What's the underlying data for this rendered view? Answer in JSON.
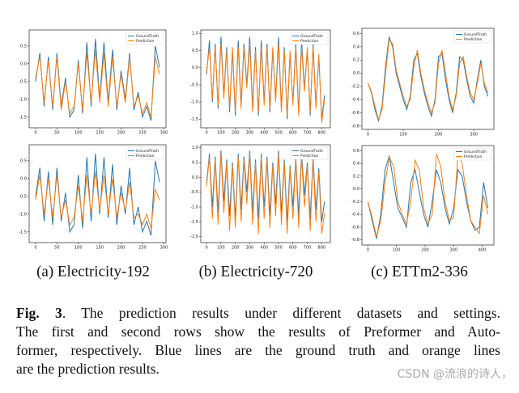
{
  "chart_data": [
    {
      "type": "line",
      "x": [
        0,
        10,
        20,
        30,
        40,
        50,
        60,
        70,
        80,
        90,
        100,
        110,
        120,
        130,
        140,
        150,
        160,
        170,
        180,
        190,
        200,
        210,
        220,
        230,
        240,
        250,
        260,
        270,
        280,
        290
      ],
      "series": [
        {
          "name": "GroundTruth",
          "color": "#1f77b4",
          "values": [
            -0.5,
            0.3,
            -1.2,
            0.2,
            -1.3,
            0.3,
            -1.2,
            -0.4,
            -1.5,
            -1.3,
            0.1,
            -1.4,
            0.6,
            -1.2,
            0.7,
            -1.0,
            0.6,
            -1.1,
            0.4,
            -1.3,
            -0.2,
            -1.0,
            0.3,
            -1.3,
            -0.8,
            -1.5,
            -1.2,
            -1.6,
            0.5,
            -0.1
          ]
        },
        {
          "name": "Prediction",
          "color": "#ff7f0e",
          "values": [
            -0.4,
            0.2,
            -1.1,
            0.1,
            -1.2,
            0.2,
            -1.3,
            -0.5,
            -1.4,
            -1.2,
            0.0,
            -1.3,
            0.3,
            -1.1,
            0.4,
            -1.1,
            0.3,
            -1.2,
            0.2,
            -1.2,
            -0.3,
            -1.1,
            0.2,
            -1.2,
            -0.9,
            -1.4,
            -1.1,
            -1.5,
            0.2,
            -0.3
          ]
        }
      ],
      "xlim": [
        -15,
        305
      ],
      "xticks": [
        0,
        50,
        100,
        150,
        200,
        250,
        300
      ],
      "ylim": [
        -1.8,
        0.95
      ],
      "yticks": [
        0.5,
        {
          "value": 0,
          "label": "0.0"
        },
        -0.5,
        {
          "value": -1,
          "label": "-1.0"
        },
        -1.5
      ],
      "legend": "upper right"
    },
    {
      "type": "line",
      "x": [
        0,
        20,
        40,
        60,
        80,
        100,
        120,
        140,
        160,
        180,
        200,
        220,
        240,
        260,
        280,
        300,
        320,
        340,
        360,
        380,
        400,
        420,
        440,
        460,
        480,
        500,
        520,
        540,
        560,
        580,
        600,
        620,
        640,
        660,
        680,
        700,
        720,
        740,
        760,
        780,
        800,
        820
      ],
      "series": [
        {
          "name": "GroundTruth",
          "color": "#1f77b4",
          "values": [
            -0.2,
            0.8,
            -1.0,
            0.7,
            -1.2,
            0.9,
            -0.8,
            0.6,
            -1.3,
            0.5,
            -1.4,
            0.8,
            -1.1,
            0.7,
            -0.5,
            0.9,
            -1.2,
            0.6,
            -1.4,
            0.8,
            -1.0,
            0.7,
            -1.3,
            0.5,
            -0.9,
            0.9,
            -1.2,
            0.6,
            -1.5,
            0.4,
            -1.0,
            0.7,
            -1.3,
            0.8,
            -0.6,
            0.5,
            -1.4,
            0.7,
            -1.1,
            0.3,
            -1.5,
            -0.8
          ]
        },
        {
          "name": "Prediction",
          "color": "#ff7f0e",
          "values": [
            -0.1,
            0.6,
            -0.9,
            0.6,
            -1.1,
            0.7,
            -0.9,
            0.5,
            -1.2,
            0.6,
            -1.3,
            0.6,
            -1.2,
            0.6,
            -0.6,
            0.7,
            -1.3,
            0.5,
            -1.3,
            0.6,
            -1.1,
            0.6,
            -1.2,
            0.6,
            -1.0,
            0.7,
            -1.3,
            0.5,
            -1.4,
            0.5,
            -1.1,
            0.6,
            -1.4,
            0.6,
            -0.7,
            0.6,
            -1.3,
            0.6,
            -1.2,
            0.4,
            -1.6,
            -0.9
          ]
        }
      ],
      "xlim": [
        -40,
        860
      ],
      "xticks": [
        0,
        100,
        200,
        300,
        400,
        500,
        600,
        700,
        800
      ],
      "ylim": [
        -1.75,
        1.1
      ],
      "yticks": [
        {
          "value": 1,
          "label": "1.0"
        },
        0.5,
        {
          "value": 0,
          "label": "0.0"
        },
        -0.5,
        {
          "value": -1,
          "label": "-1.0"
        },
        -1.5
      ],
      "legend": "upper right"
    },
    {
      "type": "line",
      "x": [
        0,
        10,
        20,
        30,
        40,
        50,
        60,
        70,
        80,
        90,
        100,
        110,
        120,
        130,
        140,
        150,
        160,
        170,
        180,
        190,
        200,
        210,
        220,
        230,
        240,
        250,
        260,
        270,
        280,
        290,
        300,
        310,
        320,
        330,
        340
      ],
      "series": [
        {
          "name": "GroundTruth",
          "color": "#1f77b4",
          "values": [
            -0.15,
            -0.3,
            -0.55,
            -0.72,
            -0.5,
            0.1,
            0.55,
            0.4,
            0.0,
            -0.2,
            -0.4,
            -0.55,
            -0.35,
            0.2,
            0.3,
            -0.05,
            -0.3,
            -0.5,
            -0.65,
            -0.4,
            0.25,
            0.3,
            -0.1,
            -0.4,
            -0.6,
            -0.3,
            0.25,
            0.2,
            -0.1,
            -0.35,
            -0.45,
            -0.1,
            0.2,
            -0.2,
            -0.35
          ]
        },
        {
          "name": "Prediction",
          "color": "#ff7f0e",
          "values": [
            -0.15,
            -0.28,
            -0.5,
            -0.7,
            -0.55,
            0.0,
            0.5,
            0.45,
            0.05,
            -0.15,
            -0.35,
            -0.5,
            -0.4,
            0.1,
            0.35,
            0.0,
            -0.25,
            -0.45,
            -0.6,
            -0.45,
            0.15,
            0.35,
            0.0,
            -0.35,
            -0.55,
            -0.35,
            0.15,
            0.25,
            -0.05,
            -0.3,
            -0.4,
            -0.15,
            0.15,
            -0.15,
            -0.3
          ]
        }
      ],
      "xlim": [
        -17,
        357
      ],
      "xticks": [
        0,
        100,
        200,
        300
      ],
      "ylim": [
        -0.85,
        0.68
      ],
      "yticks": [
        0.6,
        0.4,
        0.2,
        {
          "value": 0,
          "label": "0.0"
        },
        -0.2,
        -0.4,
        -0.6,
        -0.8
      ],
      "legend": "upper right"
    },
    {
      "type": "line",
      "x": [
        0,
        10,
        20,
        30,
        40,
        50,
        60,
        70,
        80,
        90,
        100,
        110,
        120,
        130,
        140,
        150,
        160,
        170,
        180,
        190,
        200,
        210,
        220,
        230,
        240,
        250,
        260,
        270,
        280,
        290
      ],
      "series": [
        {
          "name": "GroundTruth",
          "color": "#1f77b4",
          "values": [
            -0.5,
            0.3,
            -1.2,
            0.2,
            -1.3,
            0.3,
            -1.2,
            -0.4,
            -1.5,
            -1.3,
            0.1,
            -1.4,
            0.6,
            -1.2,
            0.7,
            -1.0,
            0.6,
            -1.1,
            0.4,
            -1.3,
            -0.2,
            -1.0,
            0.3,
            -1.3,
            -0.8,
            -1.5,
            -1.2,
            -1.6,
            0.5,
            -0.1
          ]
        },
        {
          "name": "Prediction",
          "color": "#ff7f0e",
          "values": [
            -0.6,
            0.1,
            -1.0,
            0.0,
            -1.1,
            0.1,
            -1.1,
            -0.6,
            -1.3,
            -1.1,
            -0.2,
            -1.2,
            0.1,
            -1.0,
            0.2,
            -0.9,
            0.1,
            -1.0,
            0.0,
            -1.1,
            -0.4,
            -0.9,
            -0.1,
            -1.1,
            -1.0,
            -1.3,
            -1.0,
            -1.4,
            -0.3,
            -0.6
          ]
        }
      ],
      "xlim": [
        -15,
        305
      ],
      "xticks": [
        0,
        50,
        100,
        150,
        200,
        250,
        300
      ],
      "ylim": [
        -1.8,
        0.95
      ],
      "yticks": [
        0.5,
        {
          "value": 0,
          "label": "0.0"
        },
        -0.5,
        {
          "value": -1,
          "label": "-1.0"
        },
        -1.5
      ],
      "legend": "upper right"
    },
    {
      "type": "line",
      "x": [
        0,
        20,
        40,
        60,
        80,
        100,
        120,
        140,
        160,
        180,
        200,
        220,
        240,
        260,
        280,
        300,
        320,
        340,
        360,
        380,
        400,
        420,
        440,
        460,
        480,
        500,
        520,
        540,
        560,
        580,
        600,
        620,
        640,
        660,
        680,
        700,
        720,
        740,
        760,
        780,
        800,
        820
      ],
      "series": [
        {
          "name": "GroundTruth",
          "color": "#1f77b4",
          "values": [
            -0.2,
            0.8,
            -1.0,
            0.7,
            -1.2,
            0.9,
            -0.8,
            0.6,
            -1.3,
            0.5,
            -1.4,
            0.8,
            -1.1,
            0.7,
            -0.5,
            0.9,
            -1.2,
            0.6,
            -1.4,
            0.8,
            -1.0,
            0.7,
            -1.3,
            0.5,
            -0.9,
            0.9,
            -1.2,
            0.6,
            -1.5,
            0.4,
            -1.0,
            0.7,
            -1.3,
            0.8,
            -0.6,
            0.5,
            -1.4,
            0.7,
            -1.1,
            0.3,
            -1.5,
            -0.8
          ]
        },
        {
          "name": "Prediction",
          "color": "#ff7f0e",
          "values": [
            -0.3,
            0.7,
            -1.4,
            0.6,
            -1.6,
            0.8,
            -1.2,
            0.5,
            -1.8,
            0.4,
            -1.7,
            0.7,
            -1.5,
            0.6,
            -0.9,
            0.8,
            -1.6,
            0.5,
            -1.9,
            0.7,
            -1.4,
            0.6,
            -1.7,
            0.4,
            -1.3,
            0.8,
            -1.6,
            0.5,
            -1.9,
            0.3,
            -1.4,
            0.6,
            -1.7,
            0.7,
            -1.0,
            0.4,
            -1.8,
            0.6,
            -1.5,
            0.2,
            -1.9,
            -1.2
          ]
        }
      ],
      "xlim": [
        -40,
        860
      ],
      "xticks": [
        0,
        100,
        200,
        300,
        400,
        500,
        600,
        700,
        800
      ],
      "ylim": [
        -2.2,
        1.1
      ],
      "yticks": [
        {
          "value": 1,
          "label": "1.0"
        },
        0.5,
        {
          "value": 0,
          "label": "0.0"
        },
        -0.5,
        {
          "value": -1,
          "label": "-1.0"
        },
        -1.5,
        {
          "value": -2,
          "label": "-2.0"
        }
      ],
      "legend": "upper right"
    },
    {
      "type": "line",
      "x": [
        0,
        15,
        30,
        45,
        60,
        75,
        90,
        105,
        120,
        135,
        150,
        165,
        180,
        195,
        210,
        225,
        240,
        255,
        270,
        285,
        300,
        315,
        330,
        345,
        360,
        375,
        390,
        405,
        420
      ],
      "series": [
        {
          "name": "GroundTruth",
          "color": "#1f77b4",
          "values": [
            -0.2,
            -0.5,
            -0.78,
            -0.4,
            0.3,
            0.52,
            0.1,
            -0.3,
            -0.45,
            -0.6,
            0.1,
            0.3,
            -0.05,
            -0.4,
            -0.6,
            -0.2,
            0.3,
            0.1,
            -0.3,
            -0.55,
            -0.3,
            0.3,
            0.2,
            -0.2,
            -0.5,
            -0.65,
            -0.6,
            0.1,
            -0.3
          ]
        },
        {
          "name": "Prediction",
          "color": "#ff7f0e",
          "values": [
            -0.2,
            -0.45,
            -0.75,
            -0.5,
            0.1,
            0.5,
            0.35,
            -0.2,
            -0.4,
            -0.55,
            -0.2,
            0.45,
            0.3,
            -0.3,
            -0.55,
            -0.4,
            0.55,
            0.35,
            -0.2,
            -0.5,
            -0.45,
            0.55,
            0.4,
            -0.1,
            -0.5,
            -0.6,
            -0.7,
            -0.1,
            -0.4
          ]
        }
      ],
      "xlim": [
        -21,
        441
      ],
      "xticks": [
        0,
        100,
        200,
        300,
        400
      ],
      "ylim": [
        -0.88,
        0.68
      ],
      "yticks": [
        0.6,
        0.4,
        0.2,
        {
          "value": 0,
          "label": "0.0"
        },
        -0.2,
        -0.4,
        -0.6,
        -0.8
      ],
      "legend": "upper right"
    }
  ],
  "subcaptions": [
    "(a) Electricity-192",
    "(b) Electricity-720",
    "(c) ETTm2-336"
  ],
  "caption": {
    "label": "Fig. 3",
    "lines": [
      ". The prediction results under different datasets and settings.",
      "The first and second rows show the results of Preformer and Auto-",
      "former, respectively. Blue lines are the ground truth and orange lines",
      "are the prediction results."
    ]
  },
  "watermark": "CSDN @流浪的诗人，"
}
